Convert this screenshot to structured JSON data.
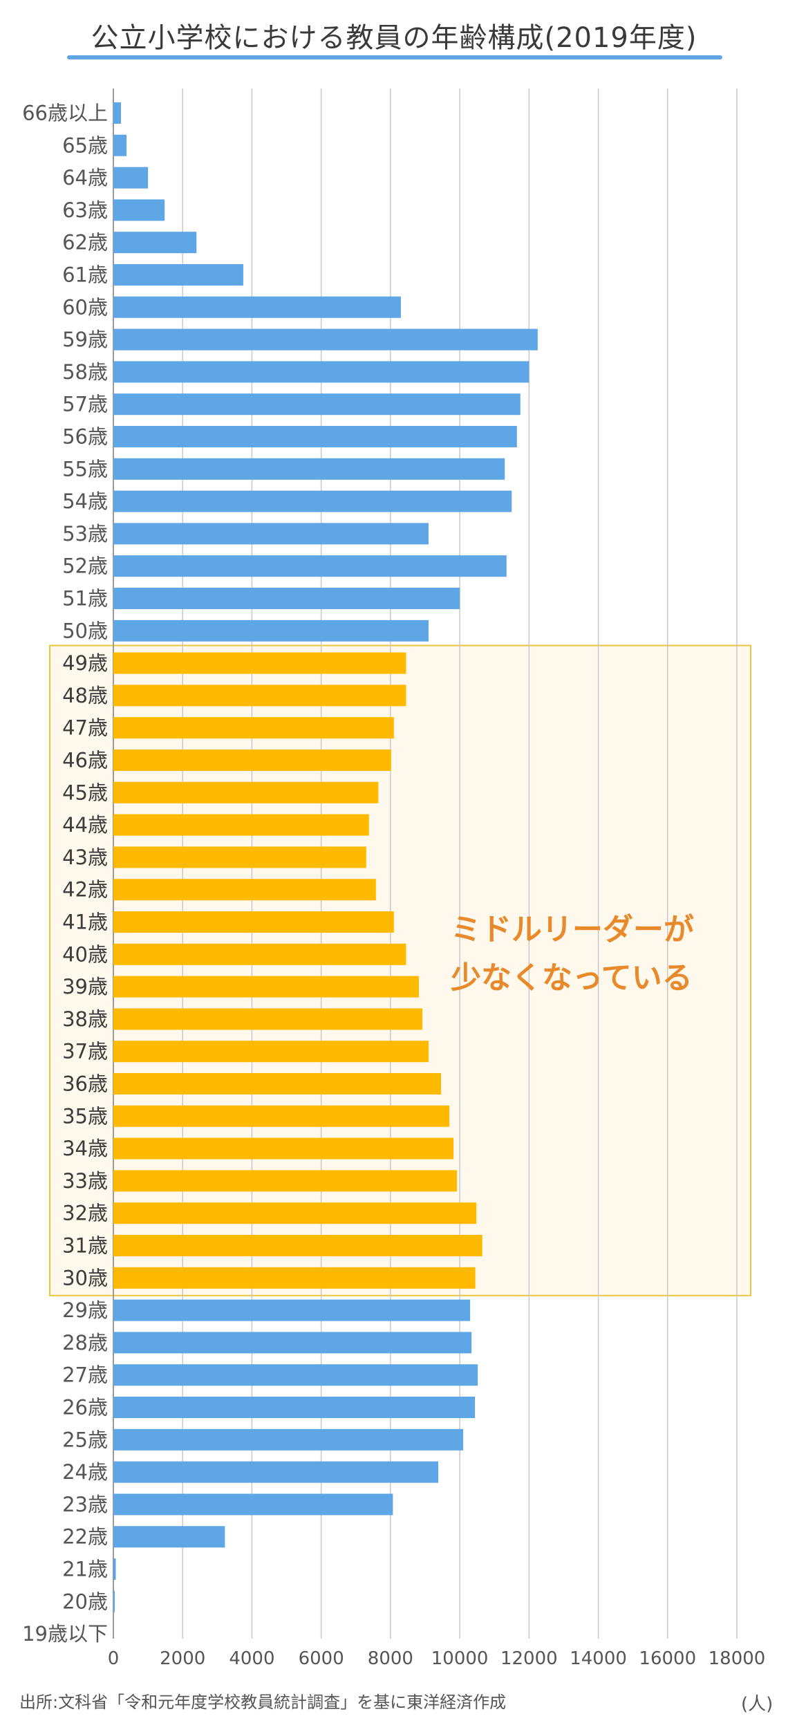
{
  "header": {
    "title": "公立小学校における教員の年齢構成(2019年度)"
  },
  "annotation": {
    "line1": "ミドルリーダーが",
    "line2": "少なくなっている"
  },
  "footer": {
    "unit": "(人)",
    "source": "出所:文科省「令和元年度学校教員統計調査」を基に東洋経済作成"
  },
  "colors": {
    "bar": "#5ea6e6",
    "highlight_bar": "#ffba00",
    "highlight_box_fill": "#fef9ec",
    "highlight_box_stroke": "#ebc63a",
    "grid": "#c8c8c8",
    "annotation_text": "#e8892b"
  },
  "chart_data": {
    "type": "bar",
    "orientation": "horizontal",
    "title": "公立小学校における教員の年齢構成(2019年度)",
    "xlabel": "(人)",
    "xlim": [
      0,
      18000
    ],
    "xticks": [
      0,
      2000,
      4000,
      6000,
      8000,
      10000,
      12000,
      14000,
      16000,
      18000
    ],
    "grid": "vertical",
    "categories": [
      "66歳以上",
      "65歳",
      "64歳",
      "63歳",
      "62歳",
      "61歳",
      "60歳",
      "59歳",
      "58歳",
      "57歳",
      "56歳",
      "55歳",
      "54歳",
      "53歳",
      "52歳",
      "51歳",
      "50歳",
      "49歳",
      "48歳",
      "47歳",
      "46歳",
      "45歳",
      "44歳",
      "43歳",
      "42歳",
      "41歳",
      "40歳",
      "39歳",
      "38歳",
      "37歳",
      "36歳",
      "35歳",
      "34歳",
      "33歳",
      "32歳",
      "31歳",
      "30歳",
      "29歳",
      "28歳",
      "27歳",
      "26歳",
      "25歳",
      "24歳",
      "23歳",
      "22歳",
      "21歳",
      "20歳",
      "19歳以下"
    ],
    "values": [
      220,
      380,
      1000,
      1480,
      2400,
      3750,
      8300,
      12250,
      12000,
      11750,
      11650,
      11300,
      11500,
      9100,
      11350,
      10000,
      9100,
      8450,
      8450,
      8100,
      8020,
      7650,
      7380,
      7300,
      7580,
      8100,
      8450,
      8820,
      8920,
      9100,
      9460,
      9700,
      9820,
      9920,
      10480,
      10650,
      10450,
      10300,
      10340,
      10520,
      10440,
      10100,
      9380,
      8070,
      3220,
      70,
      30,
      0
    ],
    "highlight": {
      "from": "49歳",
      "to": "30歳"
    }
  }
}
